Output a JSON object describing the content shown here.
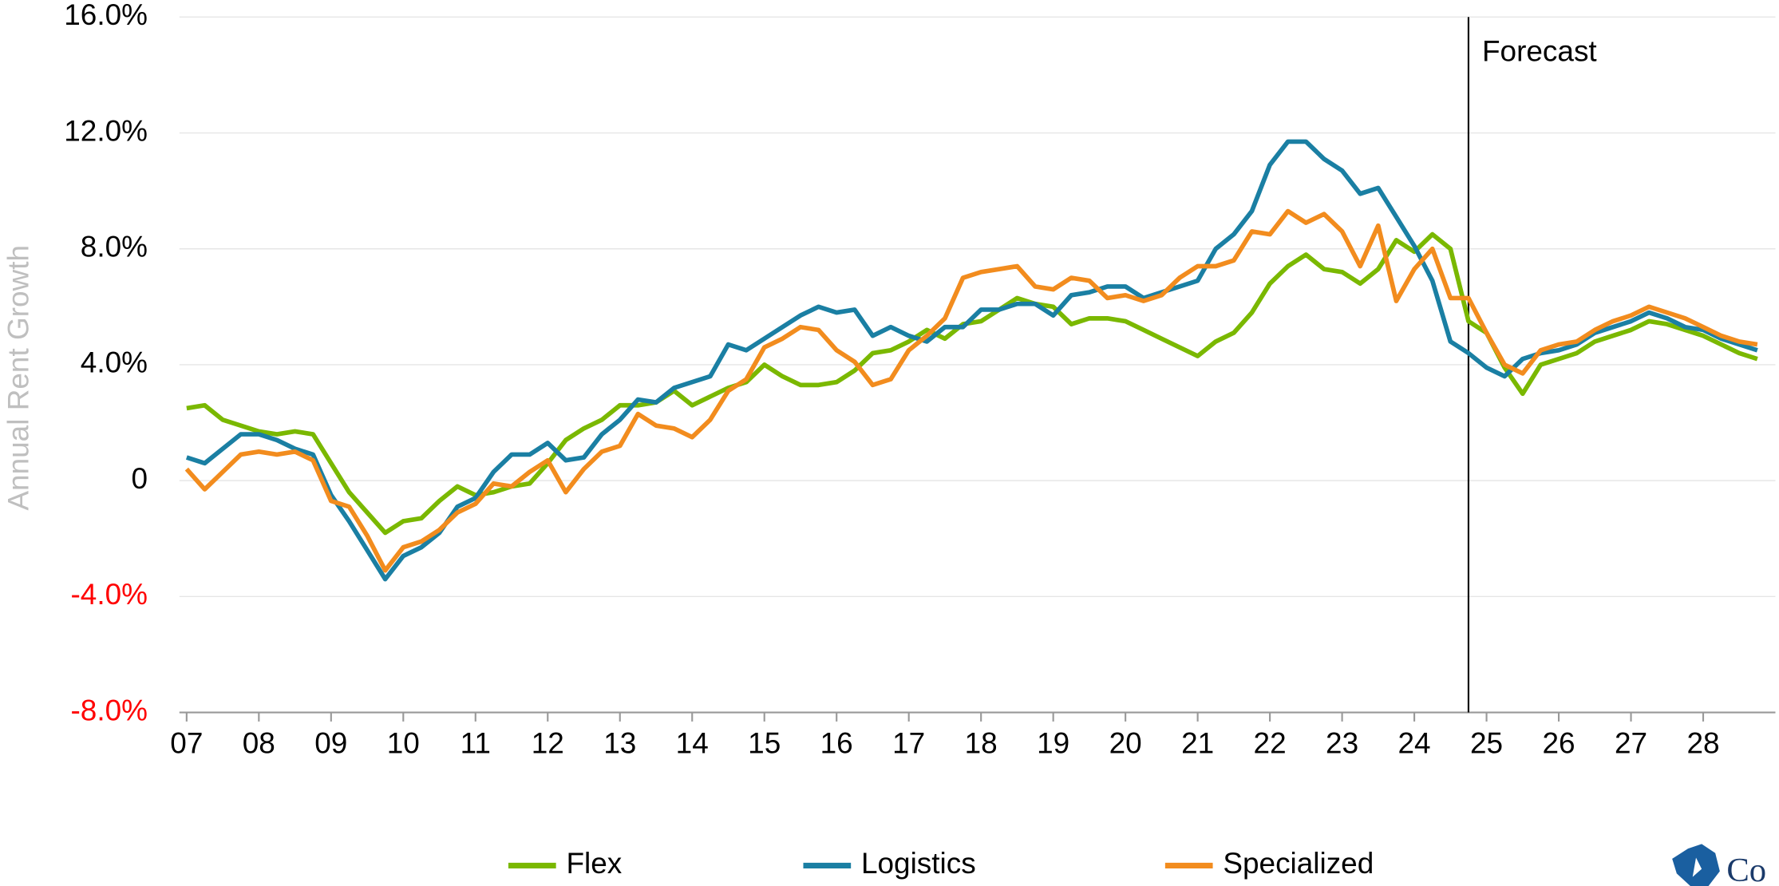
{
  "chart_data": {
    "type": "line",
    "y_label": "Annual Rent Growth",
    "x": [
      2007,
      2007.25,
      2007.5,
      2007.75,
      2008,
      2008.25,
      2008.5,
      2008.75,
      2009,
      2009.25,
      2009.5,
      2009.75,
      2010,
      2010.25,
      2010.5,
      2010.75,
      2011,
      2011.25,
      2011.5,
      2011.75,
      2012,
      2012.25,
      2012.5,
      2012.75,
      2013,
      2013.25,
      2013.5,
      2013.75,
      2014,
      2014.25,
      2014.5,
      2014.75,
      2015,
      2015.25,
      2015.5,
      2015.75,
      2016,
      2016.25,
      2016.5,
      2016.75,
      2017,
      2017.25,
      2017.5,
      2017.75,
      2018,
      2018.25,
      2018.5,
      2018.75,
      2019,
      2019.25,
      2019.5,
      2019.75,
      2020,
      2020.25,
      2020.5,
      2020.75,
      2021,
      2021.25,
      2021.5,
      2021.75,
      2022,
      2022.25,
      2022.5,
      2022.75,
      2023,
      2023.25,
      2023.5,
      2023.75,
      2024,
      2024.25,
      2024.5,
      2024.75,
      2025,
      2025.25,
      2025.5,
      2025.75,
      2026,
      2026.25,
      2026.5,
      2026.75,
      2027,
      2027.25,
      2027.5,
      2027.75,
      2028,
      2028.25,
      2028.5,
      2028.75
    ],
    "series": [
      {
        "name": "Flex",
        "color": "#7ab800",
        "values": [
          2.5,
          2.6,
          2.1,
          1.9,
          1.7,
          1.6,
          1.7,
          1.6,
          0.6,
          -0.4,
          -1.1,
          -1.8,
          -1.4,
          -1.3,
          -0.7,
          -0.2,
          -0.5,
          -0.4,
          -0.2,
          -0.1,
          0.6,
          1.4,
          1.8,
          2.1,
          2.6,
          2.6,
          2.7,
          3.1,
          2.6,
          2.9,
          3.2,
          3.4,
          4.0,
          3.6,
          3.3,
          3.3,
          3.4,
          3.8,
          4.4,
          4.5,
          4.8,
          5.2,
          4.9,
          5.4,
          5.5,
          5.9,
          6.3,
          6.1,
          6.0,
          5.4,
          5.6,
          5.6,
          5.5,
          5.2,
          4.9,
          4.6,
          4.3,
          4.8,
          5.1,
          5.8,
          6.8,
          7.4,
          7.8,
          7.3,
          7.2,
          6.8,
          7.3,
          8.3,
          7.9,
          8.5,
          8.0,
          5.5,
          5.1,
          3.9,
          3.0,
          4.0,
          4.2,
          4.4,
          4.8,
          5.0,
          5.2,
          5.5,
          5.4,
          5.2,
          5.0,
          4.7,
          4.4,
          4.2
        ]
      },
      {
        "name": "Logistics",
        "color": "#1a7fa3",
        "values": [
          0.8,
          0.6,
          1.1,
          1.6,
          1.6,
          1.4,
          1.1,
          0.9,
          -0.5,
          -1.4,
          -2.4,
          -3.4,
          -2.6,
          -2.3,
          -1.8,
          -0.9,
          -0.6,
          0.3,
          0.9,
          0.9,
          1.3,
          0.7,
          0.8,
          1.6,
          2.1,
          2.8,
          2.7,
          3.2,
          3.4,
          3.6,
          4.7,
          4.5,
          4.9,
          5.3,
          5.7,
          6.0,
          5.8,
          5.9,
          5.0,
          5.3,
          5.0,
          4.8,
          5.3,
          5.3,
          5.9,
          5.9,
          6.1,
          6.1,
          5.7,
          6.4,
          6.5,
          6.7,
          6.7,
          6.3,
          6.5,
          6.7,
          6.9,
          8.0,
          8.5,
          9.3,
          10.9,
          11.7,
          11.7,
          11.1,
          10.7,
          9.9,
          10.1,
          9.1,
          8.1,
          6.9,
          4.8,
          4.4,
          3.9,
          3.6,
          4.2,
          4.4,
          4.5,
          4.7,
          5.1,
          5.3,
          5.5,
          5.8,
          5.6,
          5.3,
          5.2,
          4.9,
          4.7,
          4.5
        ]
      },
      {
        "name": "Specialized",
        "color": "#f28c1e",
        "values": [
          0.4,
          -0.3,
          0.3,
          0.9,
          1.0,
          0.9,
          1.0,
          0.7,
          -0.7,
          -0.9,
          -1.9,
          -3.1,
          -2.3,
          -2.1,
          -1.7,
          -1.1,
          -0.8,
          -0.1,
          -0.2,
          0.3,
          0.7,
          -0.4,
          0.4,
          1.0,
          1.2,
          2.3,
          1.9,
          1.8,
          1.5,
          2.1,
          3.1,
          3.5,
          4.6,
          4.9,
          5.3,
          5.2,
          4.5,
          4.1,
          3.3,
          3.5,
          4.5,
          5.0,
          5.6,
          7.0,
          7.2,
          7.3,
          7.4,
          6.7,
          6.6,
          7.0,
          6.9,
          6.3,
          6.4,
          6.2,
          6.4,
          7.0,
          7.4,
          7.4,
          7.6,
          8.6,
          8.5,
          9.3,
          8.9,
          9.2,
          8.6,
          7.4,
          8.8,
          6.2,
          7.3,
          8.0,
          6.3,
          6.3,
          5.1,
          4.0,
          3.7,
          4.5,
          4.7,
          4.8,
          5.2,
          5.5,
          5.7,
          6.0,
          5.8,
          5.6,
          5.3,
          5.0,
          4.8,
          4.7
        ]
      }
    ],
    "xlim": [
      2006.9,
      2029.0
    ],
    "xticks": [
      {
        "value": 2007,
        "label": "07"
      },
      {
        "value": 2008,
        "label": "08"
      },
      {
        "value": 2009,
        "label": "09"
      },
      {
        "value": 2010,
        "label": "10"
      },
      {
        "value": 2011,
        "label": "11"
      },
      {
        "value": 2012,
        "label": "12"
      },
      {
        "value": 2013,
        "label": "13"
      },
      {
        "value": 2014,
        "label": "14"
      },
      {
        "value": 2015,
        "label": "15"
      },
      {
        "value": 2016,
        "label": "16"
      },
      {
        "value": 2017,
        "label": "17"
      },
      {
        "value": 2018,
        "label": "18"
      },
      {
        "value": 2019,
        "label": "19"
      },
      {
        "value": 2020,
        "label": "20"
      },
      {
        "value": 2021,
        "label": "21"
      },
      {
        "value": 2022,
        "label": "22"
      },
      {
        "value": 2023,
        "label": "23"
      },
      {
        "value": 2024,
        "label": "24"
      },
      {
        "value": 2025,
        "label": "25"
      },
      {
        "value": 2026,
        "label": "26"
      },
      {
        "value": 2027,
        "label": "27"
      },
      {
        "value": 2028,
        "label": "28"
      }
    ],
    "ylim": [
      -8,
      16
    ],
    "yticks": [
      {
        "value": -8,
        "label": "-8.0%"
      },
      {
        "value": -4,
        "label": "-4.0%"
      },
      0,
      {
        "value": 4,
        "label": "4.0%"
      },
      {
        "value": 8,
        "label": "8.0%"
      },
      {
        "value": 12,
        "label": "12.0%"
      },
      {
        "value": 16,
        "label": "16.0%"
      }
    ],
    "negative_tick_color": "#ff0000",
    "grid": true,
    "legend": "bottom",
    "annotations": [
      {
        "text": "Forecast",
        "x": 2024.75
      }
    ],
    "logo_text": "Co"
  }
}
